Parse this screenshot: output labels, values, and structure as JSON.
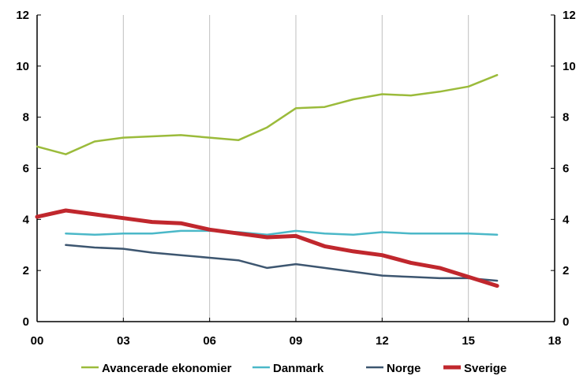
{
  "chart_data": {
    "type": "line",
    "x": [
      "00",
      "01",
      "02",
      "03",
      "04",
      "05",
      "06",
      "07",
      "08",
      "09",
      "10",
      "11",
      "12",
      "13",
      "14",
      "15",
      "16"
    ],
    "x_tick_labels": [
      "00",
      "03",
      "06",
      "09",
      "12",
      "15",
      "18"
    ],
    "y_tick_labels": [
      "0",
      "2",
      "4",
      "6",
      "8",
      "10",
      "12"
    ],
    "xlim": [
      0,
      18
    ],
    "ylim": [
      0,
      12
    ],
    "y_axis_right_mirrored": true,
    "grid": "vertical",
    "legend_position": "bottom",
    "series": [
      {
        "name": "Avancerade ekonomier",
        "color": "#9BBB3B",
        "x": [
          0,
          1,
          2,
          3,
          4,
          5,
          6,
          7,
          8,
          9,
          10,
          11,
          12,
          13,
          14,
          15,
          16
        ],
        "values": [
          6.85,
          6.55,
          7.05,
          7.2,
          7.25,
          7.3,
          7.2,
          7.1,
          7.6,
          8.35,
          8.4,
          8.7,
          8.9,
          8.85,
          9.0,
          9.2,
          9.65
        ]
      },
      {
        "name": "Danmark",
        "color": "#4BB8C8",
        "x": [
          1,
          2,
          3,
          4,
          5,
          6,
          7,
          8,
          9,
          10,
          11,
          12,
          13,
          14,
          15,
          16
        ],
        "values": [
          3.45,
          3.4,
          3.45,
          3.45,
          3.55,
          3.55,
          3.5,
          3.4,
          3.55,
          3.45,
          3.4,
          3.5,
          3.45,
          3.45,
          3.45,
          3.4
        ]
      },
      {
        "name": "Norge",
        "color": "#3D5670",
        "x": [
          1,
          2,
          3,
          4,
          5,
          6,
          7,
          8,
          9,
          10,
          11,
          12,
          13,
          14,
          15,
          16
        ],
        "values": [
          3.0,
          2.9,
          2.85,
          2.7,
          2.6,
          2.5,
          2.4,
          2.1,
          2.25,
          2.1,
          1.95,
          1.8,
          1.75,
          1.7,
          1.7,
          1.6
        ]
      },
      {
        "name": "Sverige",
        "color": "#C0272D",
        "x": [
          0,
          1,
          2,
          3,
          4,
          5,
          6,
          7,
          8,
          9,
          10,
          11,
          12,
          13,
          14,
          15,
          16
        ],
        "values": [
          4.1,
          4.35,
          4.2,
          4.05,
          3.9,
          3.85,
          3.6,
          3.45,
          3.3,
          3.35,
          2.95,
          2.75,
          2.6,
          2.3,
          2.1,
          1.75,
          1.4
        ]
      }
    ]
  }
}
